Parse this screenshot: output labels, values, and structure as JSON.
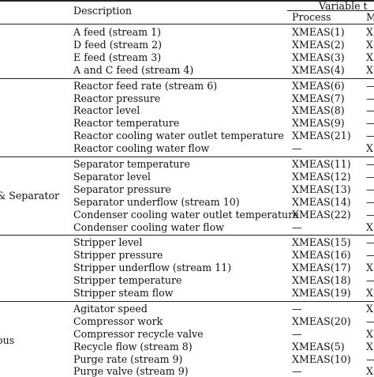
{
  "header": {
    "description": "Description",
    "variable_group": "Variable t",
    "process": "Process",
    "manipulated_fragment": "M"
  },
  "groups": [
    {
      "label": "",
      "rows": [
        {
          "description": "A feed (stream 1)",
          "process": "XMEAS(1)",
          "m": "X"
        },
        {
          "description": "D feed (stream 2)",
          "process": "XMEAS(2)",
          "m": "X"
        },
        {
          "description": "E feed (stream 3)",
          "process": "XMEAS(3)",
          "m": "X"
        },
        {
          "description": "A and C feed (stream 4)",
          "process": "XMEAS(4)",
          "m": "X"
        }
      ]
    },
    {
      "label": "",
      "rows": [
        {
          "description": "Reactor feed rate (stream 6)",
          "process": "XMEAS(6)",
          "m": "—"
        },
        {
          "description": "Reactor pressure",
          "process": "XMEAS(7)",
          "m": "—"
        },
        {
          "description": "Reactor level",
          "process": "XMEAS(8)",
          "m": "—"
        },
        {
          "description": "Reactor temperature",
          "process": "XMEAS(9)",
          "m": "—"
        },
        {
          "description": "Reactor cooling water outlet temperature",
          "process": "XMEAS(21)",
          "m": "—"
        },
        {
          "description": "Reactor cooling water flow",
          "process": "—",
          "m": "X"
        }
      ]
    },
    {
      "label": "& Separator",
      "rows": [
        {
          "description": "Separator temperature",
          "process": "XMEAS(11)",
          "m": "—"
        },
        {
          "description": "Separator level",
          "process": "XMEAS(12)",
          "m": "—"
        },
        {
          "description": "Separator pressure",
          "process": "XMEAS(13)",
          "m": "—"
        },
        {
          "description": "Separator underflow (stream 10)",
          "process": "XMEAS(14)",
          "m": "—"
        },
        {
          "description": "Condenser cooling water outlet temperature",
          "process": "XMEAS(22)",
          "m": "—"
        },
        {
          "description": "Condenser cooling water flow",
          "process": "—",
          "m": "X"
        }
      ]
    },
    {
      "label": "",
      "rows": [
        {
          "description": "Stripper level",
          "process": "XMEAS(15)",
          "m": "—"
        },
        {
          "description": "Stripper pressure",
          "process": "XMEAS(16)",
          "m": "—"
        },
        {
          "description": "Stripper underflow (stream 11)",
          "process": "XMEAS(17)",
          "m": "X"
        },
        {
          "description": "Stripper temperature",
          "process": "XMEAS(18)",
          "m": "—"
        },
        {
          "description": "Stripper steam flow",
          "process": "XMEAS(19)",
          "m": "X"
        }
      ]
    },
    {
      "label": "ous",
      "rows": [
        {
          "description": "Agitator speed",
          "process": "—",
          "m": "X"
        },
        {
          "description": "Compressor work",
          "process": "XMEAS(20)",
          "m": "—"
        },
        {
          "description": "Compressor recycle valve",
          "process": "—",
          "m": "X"
        },
        {
          "description": "Recycle flow (stream 8)",
          "process": "XMEAS(5)",
          "m": "X"
        },
        {
          "description": "Purge rate (stream 9)",
          "process": "XMEAS(10)",
          "m": "—"
        },
        {
          "description": "Purge valve (stream 9)",
          "process": "—",
          "m": "X"
        }
      ]
    }
  ]
}
